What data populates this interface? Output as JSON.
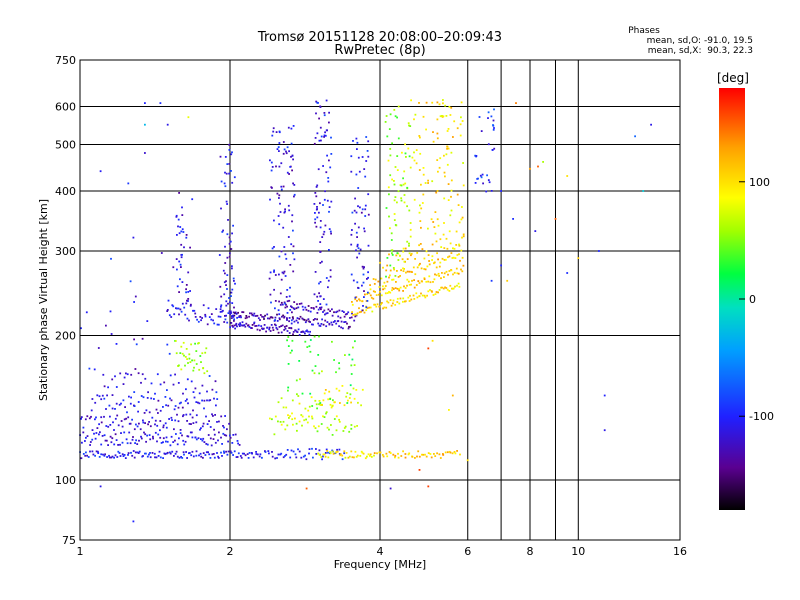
{
  "chart_data": {
    "type": "scatter",
    "title": "Tromsø 20151128 20:08:00–20:09:43",
    "subtitle": "RwPretec (8p)",
    "xlabel": "Frequency [MHz]",
    "ylabel": "Stationary phase Virtual Height [km]",
    "x_scale": "log",
    "y_scale": "log",
    "xlim": [
      1,
      16
    ],
    "ylim": [
      75,
      750
    ],
    "x_ticks": [
      1,
      2,
      4,
      6,
      8,
      10,
      16
    ],
    "x_tick_labels": [
      "1",
      "2",
      "4",
      "6",
      "8",
      "10",
      "16"
    ],
    "x_grid_lines": [
      2,
      4,
      6,
      7,
      8,
      9,
      10
    ],
    "y_ticks": [
      75,
      100,
      200,
      300,
      400,
      500,
      600,
      750
    ],
    "y_tick_labels": [
      "75",
      "100",
      "200",
      "300",
      "400",
      "500",
      "600",
      "750"
    ],
    "y_grid_lines": [
      100,
      200,
      300,
      400,
      500,
      600
    ],
    "grid": true,
    "phase_info": {
      "heading": "Phases",
      "line_o": "mean, sd,O: -91.0, 19.5",
      "line_x": "mean, sd,X:  90.3, 22.3"
    },
    "colorbar": {
      "label": "[deg]",
      "range": [
        -180,
        180
      ],
      "ticks": [
        100,
        0,
        -100
      ],
      "tick_labels": [
        "100",
        "0",
        "-100"
      ],
      "colormap": "rainbow (black → purple → blue → cyan → green → yellow → orange → red)"
    },
    "series": [
      {
        "traces": [
          {
            "f0": 1.0,
            "f1": 2.3,
            "h0": 113,
            "h1": 113,
            "n": 130,
            "phase": -105,
            "jh": 2
          },
          {
            "f0": 1.0,
            "f1": 2.1,
            "h0": 122,
            "h1": 122,
            "n": 110,
            "phase": -112,
            "jh": 4
          },
          {
            "f0": 1.0,
            "f1": 2.0,
            "h0": 132,
            "h1": 132,
            "n": 90,
            "phase": -115,
            "jh": 5
          },
          {
            "f0": 1.05,
            "f1": 1.9,
            "h0": 145,
            "h1": 142,
            "n": 70,
            "phase": -112,
            "jh": 6
          },
          {
            "f0": 1.1,
            "f1": 1.9,
            "h0": 160,
            "h1": 158,
            "n": 40,
            "phase": -110,
            "jh": 8
          },
          {
            "f0": 2.3,
            "f1": 3.4,
            "h0": 114,
            "h1": 113,
            "n": 50,
            "phase": -100,
            "jh": 3
          },
          {
            "f0": 3.0,
            "f1": 3.9,
            "h0": 113,
            "h1": 113,
            "n": 40,
            "phase": 95,
            "jh": 2
          },
          {
            "f0": 3.9,
            "f1": 5.8,
            "h0": 113,
            "h1": 113,
            "n": 50,
            "phase": 110,
            "jh": 2
          },
          {
            "f0": 2.4,
            "f1": 3.6,
            "h0": 130,
            "h1": 130,
            "n": 45,
            "phase": 65,
            "jh": 6
          },
          {
            "f0": 2.5,
            "f1": 3.3,
            "h0": 142,
            "h1": 142,
            "n": 30,
            "phase": 75,
            "jh": 8
          },
          {
            "f0": 3.0,
            "f1": 3.7,
            "h0": 150,
            "h1": 150,
            "n": 25,
            "phase": 90,
            "jh": 8
          },
          {
            "f0": 1.55,
            "f1": 1.8,
            "h0": 185,
            "h1": 178,
            "n": 40,
            "phase": 55,
            "jh": 14
          },
          {
            "f0": 1.5,
            "f1": 2.1,
            "h0": 228,
            "h1": 215,
            "n": 60,
            "phase": -110,
            "jh": 10
          },
          {
            "f0": 2.0,
            "f1": 2.9,
            "h0": 212,
            "h1": 203,
            "n": 80,
            "phase": -125,
            "jh": 4
          },
          {
            "f0": 2.0,
            "f1": 3.5,
            "h0": 222,
            "h1": 210,
            "n": 100,
            "phase": -132,
            "jh": 4
          },
          {
            "f0": 2.5,
            "f1": 3.6,
            "h0": 235,
            "h1": 218,
            "n": 60,
            "phase": -125,
            "jh": 4
          },
          {
            "f0": 3.5,
            "f1": 5.8,
            "h0": 222,
            "h1": 255,
            "n": 80,
            "phase": 100,
            "jh": 4
          },
          {
            "f0": 3.5,
            "f1": 5.9,
            "h0": 235,
            "h1": 275,
            "n": 80,
            "phase": 110,
            "jh": 5
          },
          {
            "f0": 3.8,
            "f1": 5.9,
            "h0": 255,
            "h1": 295,
            "n": 60,
            "phase": 108,
            "jh": 8
          },
          {
            "f0": 4.0,
            "f1": 5.9,
            "h0": 280,
            "h1": 320,
            "n": 40,
            "phase": 105,
            "jh": 12
          }
        ],
        "columns": [
          {
            "f0": 1.55,
            "f1": 1.68,
            "h0": 230,
            "h1": 400,
            "n": 40,
            "phase": -110
          },
          {
            "f0": 1.9,
            "f1": 2.05,
            "h0": 215,
            "h1": 500,
            "n": 70,
            "phase": -112
          },
          {
            "f0": 2.4,
            "f1": 2.7,
            "h0": 215,
            "h1": 560,
            "n": 110,
            "phase": -110
          },
          {
            "f0": 2.95,
            "f1": 3.2,
            "h0": 220,
            "h1": 620,
            "n": 90,
            "phase": -110
          },
          {
            "f0": 3.5,
            "f1": 3.8,
            "h0": 220,
            "h1": 520,
            "n": 70,
            "phase": -108
          },
          {
            "f0": 4.1,
            "f1": 4.6,
            "h0": 260,
            "h1": 620,
            "n": 80,
            "phase": 60
          },
          {
            "f0": 4.6,
            "f1": 5.9,
            "h0": 300,
            "h1": 620,
            "n": 110,
            "phase": 100
          },
          {
            "f0": 6.2,
            "f1": 6.8,
            "h0": 380,
            "h1": 600,
            "n": 30,
            "phase": -95
          },
          {
            "f0": 1.0,
            "f1": 1.6,
            "h0": 160,
            "h1": 300,
            "n": 25,
            "phase": -110
          },
          {
            "f0": 2.6,
            "f1": 3.6,
            "h0": 140,
            "h1": 200,
            "n": 50,
            "phase": 40
          }
        ],
        "scatter": [
          [
            1.1,
            440,
            -105
          ],
          [
            1.28,
            320,
            -110
          ],
          [
            1.35,
            610,
            -100
          ],
          [
            1.35,
            480,
            -120
          ],
          [
            1.45,
            610,
            -95
          ],
          [
            1.5,
            550,
            -110
          ],
          [
            1.25,
            415,
            -90
          ],
          [
            1.65,
            570,
            80
          ],
          [
            1.1,
            97,
            -110
          ],
          [
            1.28,
            82,
            -100
          ],
          [
            1.35,
            550,
            -30
          ],
          [
            2.85,
            96,
            150
          ],
          [
            4.2,
            96,
            -120
          ],
          [
            5.0,
            97,
            160
          ],
          [
            7.5,
            610,
            140
          ],
          [
            8.3,
            450,
            150
          ],
          [
            8.5,
            460,
            60
          ],
          [
            7.0,
            280,
            -100
          ],
          [
            8.2,
            330,
            -110
          ],
          [
            9.5,
            270,
            -95
          ],
          [
            11.0,
            300,
            -100
          ],
          [
            11.3,
            150,
            -100
          ],
          [
            11.3,
            127,
            -110
          ],
          [
            13.0,
            520,
            -70
          ],
          [
            14.0,
            550,
            -110
          ],
          [
            13.5,
            400,
            -20
          ],
          [
            9.0,
            350,
            150
          ],
          [
            6.7,
            260,
            -90
          ],
          [
            7.4,
            350,
            -95
          ],
          [
            7.0,
            400,
            -100
          ],
          [
            8.0,
            445,
            130
          ],
          [
            9.5,
            430,
            100
          ],
          [
            4.8,
            105,
            160
          ],
          [
            5.0,
            188,
            160
          ],
          [
            5.1,
            195,
            100
          ],
          [
            5.6,
            150,
            120
          ],
          [
            5.5,
            140,
            90
          ],
          [
            7.2,
            260,
            110
          ],
          [
            10.0,
            290,
            110
          ],
          [
            6.0,
            110,
            100
          ]
        ]
      }
    ]
  }
}
